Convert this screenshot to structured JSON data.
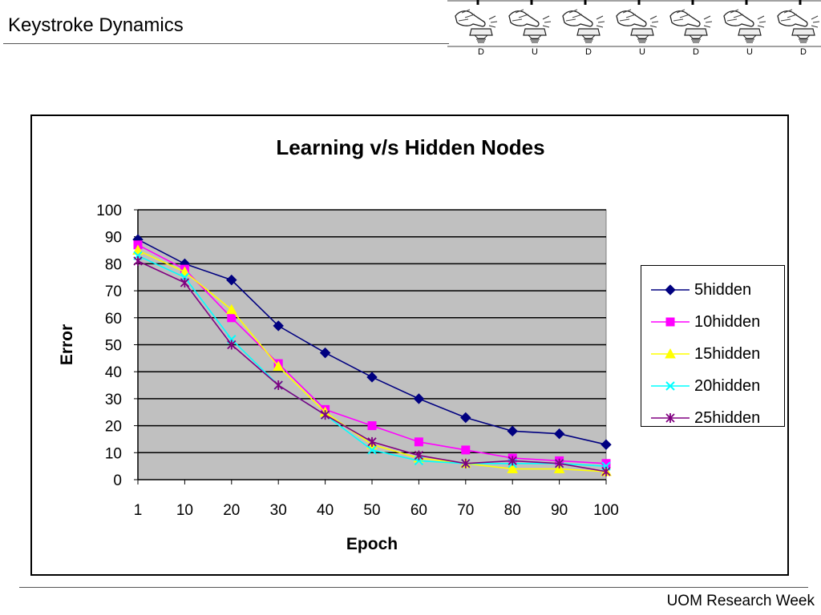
{
  "header": {
    "title": "Keystroke Dynamics",
    "banner_icons": [
      "hand-keyboard-icon",
      "hand-keyboard-icon",
      "hand-keyboard-icon",
      "hand-keyboard-icon",
      "hand-keyboard-icon",
      "hand-keyboard-icon",
      "hand-keyboard-icon"
    ],
    "banner_letters": [
      "D",
      "U",
      "D",
      "U",
      "D",
      "U",
      "D"
    ]
  },
  "footer": {
    "text": "UOM Research Week"
  },
  "chart_data": {
    "type": "line",
    "title": "Learning v/s Hidden Nodes",
    "xlabel": "Epoch",
    "ylabel": "Error",
    "categories": [
      "1",
      "10",
      "20",
      "30",
      "40",
      "50",
      "60",
      "70",
      "80",
      "90",
      "100"
    ],
    "ylim": [
      0,
      100
    ],
    "yticks": [
      0,
      10,
      20,
      30,
      40,
      50,
      60,
      70,
      80,
      90,
      100
    ],
    "grid": true,
    "plot_background": "#c0c0c0",
    "legend": "right",
    "series": [
      {
        "name": "5hidden",
        "color": "#000080",
        "marker": "diamond",
        "values": [
          89,
          80,
          74,
          57,
          47,
          38,
          30,
          23,
          18,
          17,
          13
        ]
      },
      {
        "name": "10hidden",
        "color": "#ff00ff",
        "marker": "square",
        "values": [
          87,
          78,
          60,
          43,
          26,
          20,
          14,
          11,
          8,
          7,
          6
        ]
      },
      {
        "name": "15hidden",
        "color": "#ffff00",
        "marker": "triangle",
        "values": [
          85,
          77,
          63,
          42,
          25,
          13,
          8,
          6,
          4,
          4,
          3
        ]
      },
      {
        "name": "20hidden",
        "color": "#00ffff",
        "marker": "x",
        "values": [
          83,
          75,
          52,
          35,
          24,
          11,
          7,
          6,
          6,
          6,
          5
        ]
      },
      {
        "name": "25hidden",
        "color": "#800080",
        "marker": "star",
        "values": [
          81,
          73,
          50,
          35,
          24,
          14,
          9,
          6,
          7,
          6,
          3
        ]
      }
    ]
  }
}
